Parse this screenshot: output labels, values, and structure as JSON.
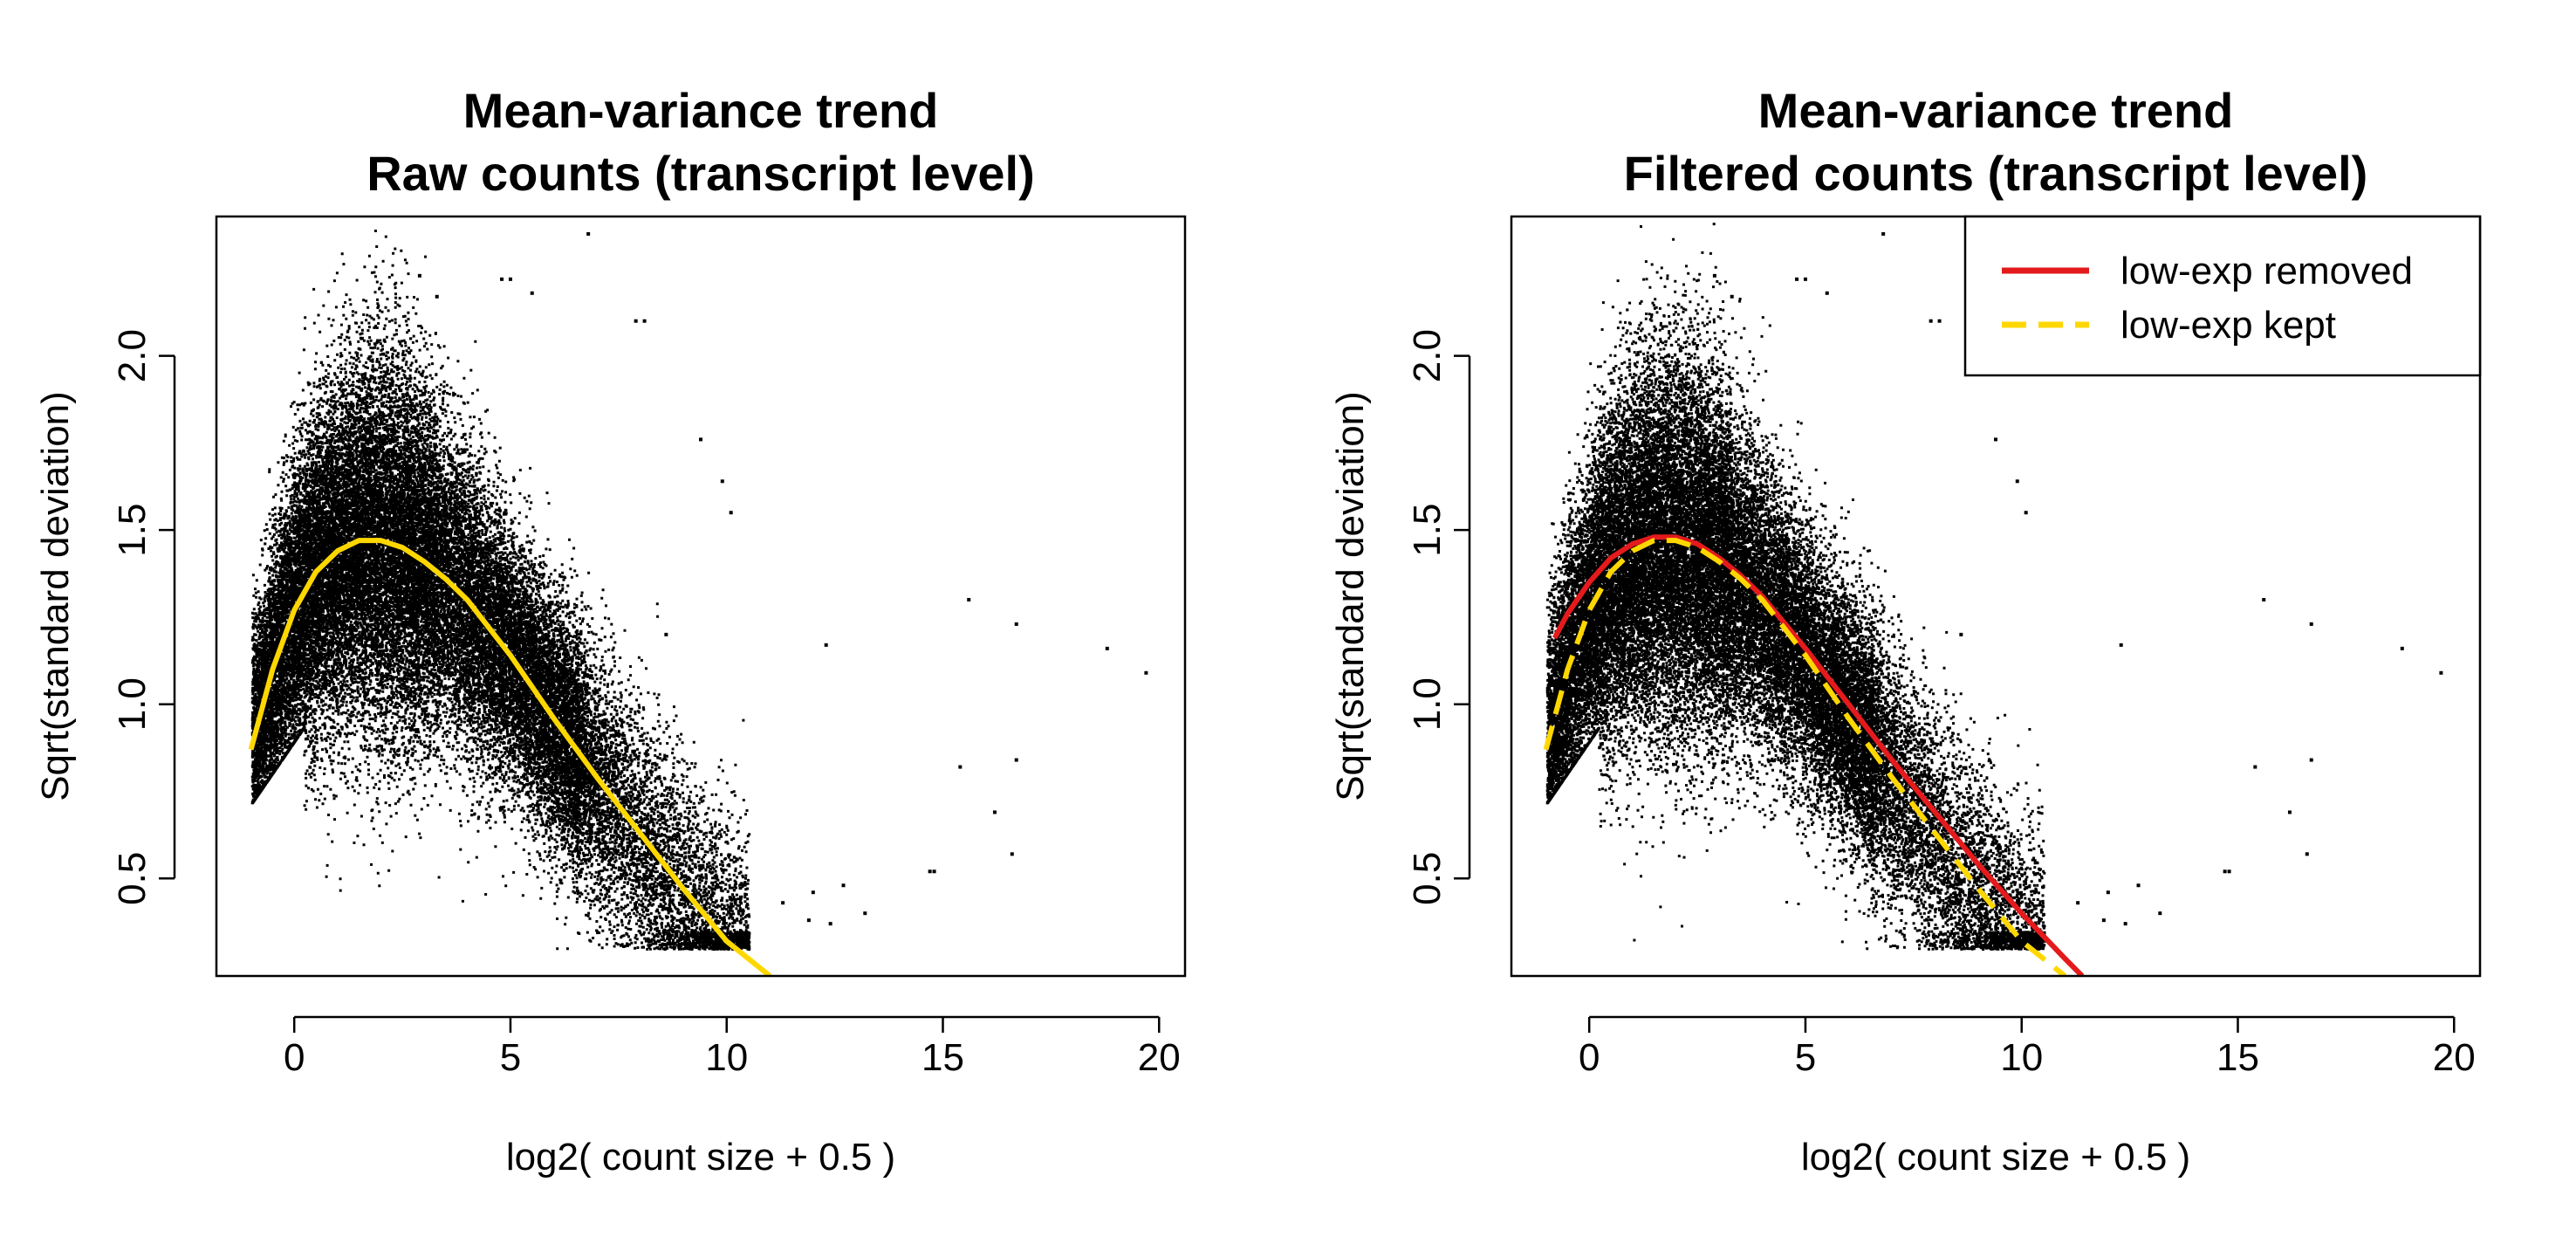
{
  "chart_data": [
    {
      "type": "scatter",
      "title": "Mean-variance trend",
      "subtitle": "Raw counts (transcript level)",
      "xlabel": "log2( count size + 0.5 )",
      "ylabel": "Sqrt(standard deviation)",
      "xlim": [
        -1.8,
        20.6
      ],
      "ylim": [
        0.22,
        2.4
      ],
      "xticks": [
        0,
        5,
        10,
        15,
        20
      ],
      "yticks": [
        0.5,
        1.0,
        1.5,
        2.0
      ],
      "xtick_labels": [
        "0",
        "5",
        "10",
        "15",
        "20"
      ],
      "ytick_labels": [
        "0.5",
        "1.0",
        "1.5",
        "2.0"
      ],
      "grid": false,
      "scatter_color": "#000000",
      "outlier_points": [
        [
          2.9,
          2.23
        ],
        [
          3.3,
          2.17
        ],
        [
          4.8,
          2.22
        ],
        [
          5.0,
          2.22
        ],
        [
          5.5,
          2.18
        ],
        [
          6.8,
          2.35
        ],
        [
          7.9,
          2.1
        ],
        [
          8.1,
          2.1
        ],
        [
          9.4,
          1.76
        ],
        [
          9.9,
          1.64
        ],
        [
          10.1,
          1.55
        ],
        [
          8.6,
          1.2
        ],
        [
          12.3,
          1.17
        ],
        [
          15.6,
          1.3
        ],
        [
          16.7,
          1.23
        ],
        [
          18.8,
          1.16
        ],
        [
          19.7,
          1.09
        ],
        [
          14.7,
          0.52
        ],
        [
          14.8,
          0.52
        ],
        [
          15.4,
          0.82
        ],
        [
          16.2,
          0.69
        ],
        [
          16.7,
          0.84
        ],
        [
          16.6,
          0.57
        ],
        [
          12.7,
          0.48
        ],
        [
          13.2,
          0.4
        ],
        [
          12.0,
          0.46
        ],
        [
          11.3,
          0.43
        ],
        [
          12.4,
          0.37
        ],
        [
          11.9,
          0.38
        ]
      ],
      "series": [
        {
          "name": "",
          "color": "#FFD700",
          "dash": "solid",
          "x": [
            -1.0,
            -0.5,
            0.0,
            0.5,
            1.0,
            1.5,
            2.0,
            2.5,
            3.0,
            3.5,
            4.0,
            5.0,
            6.0,
            7.0,
            8.0,
            9.0,
            10.0,
            11.0
          ],
          "y": [
            0.87,
            1.1,
            1.27,
            1.38,
            1.44,
            1.47,
            1.47,
            1.45,
            1.41,
            1.36,
            1.3,
            1.14,
            0.96,
            0.79,
            0.63,
            0.47,
            0.32,
            0.22
          ]
        }
      ]
    },
    {
      "type": "scatter",
      "title": "Mean-variance trend",
      "subtitle": "Filtered counts (transcript level)",
      "xlabel": "log2( count size + 0.5 )",
      "ylabel": "Sqrt(standard deviation)",
      "xlim": [
        -1.8,
        20.6
      ],
      "ylim": [
        0.22,
        2.4
      ],
      "xticks": [
        0,
        5,
        10,
        15,
        20
      ],
      "yticks": [
        0.5,
        1.0,
        1.5,
        2.0
      ],
      "xtick_labels": [
        "0",
        "5",
        "10",
        "15",
        "20"
      ],
      "ytick_labels": [
        "0.5",
        "1.0",
        "1.5",
        "2.0"
      ],
      "grid": false,
      "scatter_color": "#000000",
      "legend_position": "top-right",
      "outlier_points": [
        [
          2.9,
          2.23
        ],
        [
          3.3,
          2.17
        ],
        [
          4.8,
          2.22
        ],
        [
          5.0,
          2.22
        ],
        [
          5.5,
          2.18
        ],
        [
          6.8,
          2.35
        ],
        [
          7.9,
          2.1
        ],
        [
          8.1,
          2.1
        ],
        [
          9.4,
          1.76
        ],
        [
          9.9,
          1.64
        ],
        [
          10.1,
          1.55
        ],
        [
          8.6,
          1.2
        ],
        [
          12.3,
          1.17
        ],
        [
          15.6,
          1.3
        ],
        [
          16.7,
          1.23
        ],
        [
          18.8,
          1.16
        ],
        [
          19.7,
          1.09
        ],
        [
          14.7,
          0.52
        ],
        [
          14.8,
          0.52
        ],
        [
          15.4,
          0.82
        ],
        [
          16.2,
          0.69
        ],
        [
          16.7,
          0.84
        ],
        [
          16.6,
          0.57
        ],
        [
          12.7,
          0.48
        ],
        [
          13.2,
          0.4
        ],
        [
          12.0,
          0.46
        ],
        [
          11.3,
          0.43
        ],
        [
          12.4,
          0.37
        ],
        [
          11.9,
          0.38
        ]
      ],
      "series": [
        {
          "name": "low-exp removed",
          "color": "#E41A1C",
          "dash": "solid",
          "x": [
            -0.8,
            -0.5,
            0.0,
            0.5,
            1.0,
            1.5,
            2.0,
            2.5,
            3.0,
            3.5,
            4.0,
            5.0,
            6.0,
            7.0,
            8.0,
            9.0,
            10.0,
            11.0,
            11.4
          ],
          "y": [
            1.19,
            1.26,
            1.35,
            1.42,
            1.46,
            1.48,
            1.48,
            1.46,
            1.42,
            1.37,
            1.31,
            1.16,
            1.0,
            0.84,
            0.69,
            0.54,
            0.4,
            0.27,
            0.22
          ]
        },
        {
          "name": "low-exp kept",
          "color": "#FFD700",
          "dash": "dashed",
          "x": [
            -1.0,
            -0.5,
            0.0,
            0.5,
            1.0,
            1.5,
            2.0,
            2.5,
            3.0,
            3.5,
            4.0,
            5.0,
            6.0,
            7.0,
            8.0,
            9.0,
            10.0,
            11.0
          ],
          "y": [
            0.87,
            1.1,
            1.27,
            1.38,
            1.44,
            1.47,
            1.47,
            1.45,
            1.41,
            1.36,
            1.3,
            1.14,
            0.96,
            0.79,
            0.63,
            0.47,
            0.32,
            0.22
          ]
        }
      ]
    }
  ]
}
